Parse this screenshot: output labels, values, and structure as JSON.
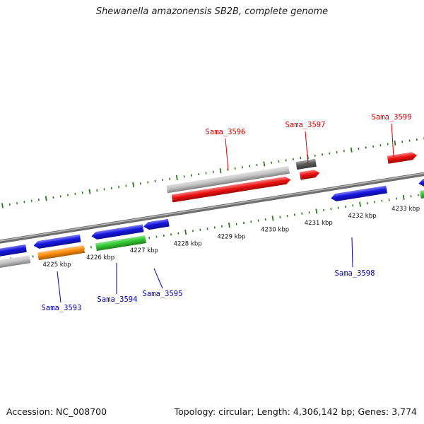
{
  "title": "Shewanella amazonensis SB2B, complete genome",
  "footer": {
    "accession": "Accession: NC_008700",
    "topology": "Topology: circular; Length: 4,306,142 bp; Genes: 3,774"
  },
  "colors": {
    "backbone": "#8a8a8a",
    "tick": "#2a7a1a",
    "label_forward": "#cc0000",
    "label_reverse": "#0000aa",
    "blue": "#1515e0",
    "red": "#ee1010",
    "green": "#33cc33",
    "orange": "#ff8c0a",
    "lightgray": "#c4c4c4",
    "darkgray": "#5a5a5a"
  },
  "scale_labels": [
    "4225 kbp",
    "4226 kbp",
    "4227 kbp",
    "4228 kbp",
    "4229 kbp",
    "4230 kbp",
    "4231 kbp",
    "4232 kbp",
    "4233 kbp"
  ],
  "gene_labels": [
    "Sama_3593",
    "Sama_3594",
    "Sama_3595",
    "Sama_3596",
    "Sama_3597",
    "Sama_3598",
    "Sama_3599"
  ]
}
